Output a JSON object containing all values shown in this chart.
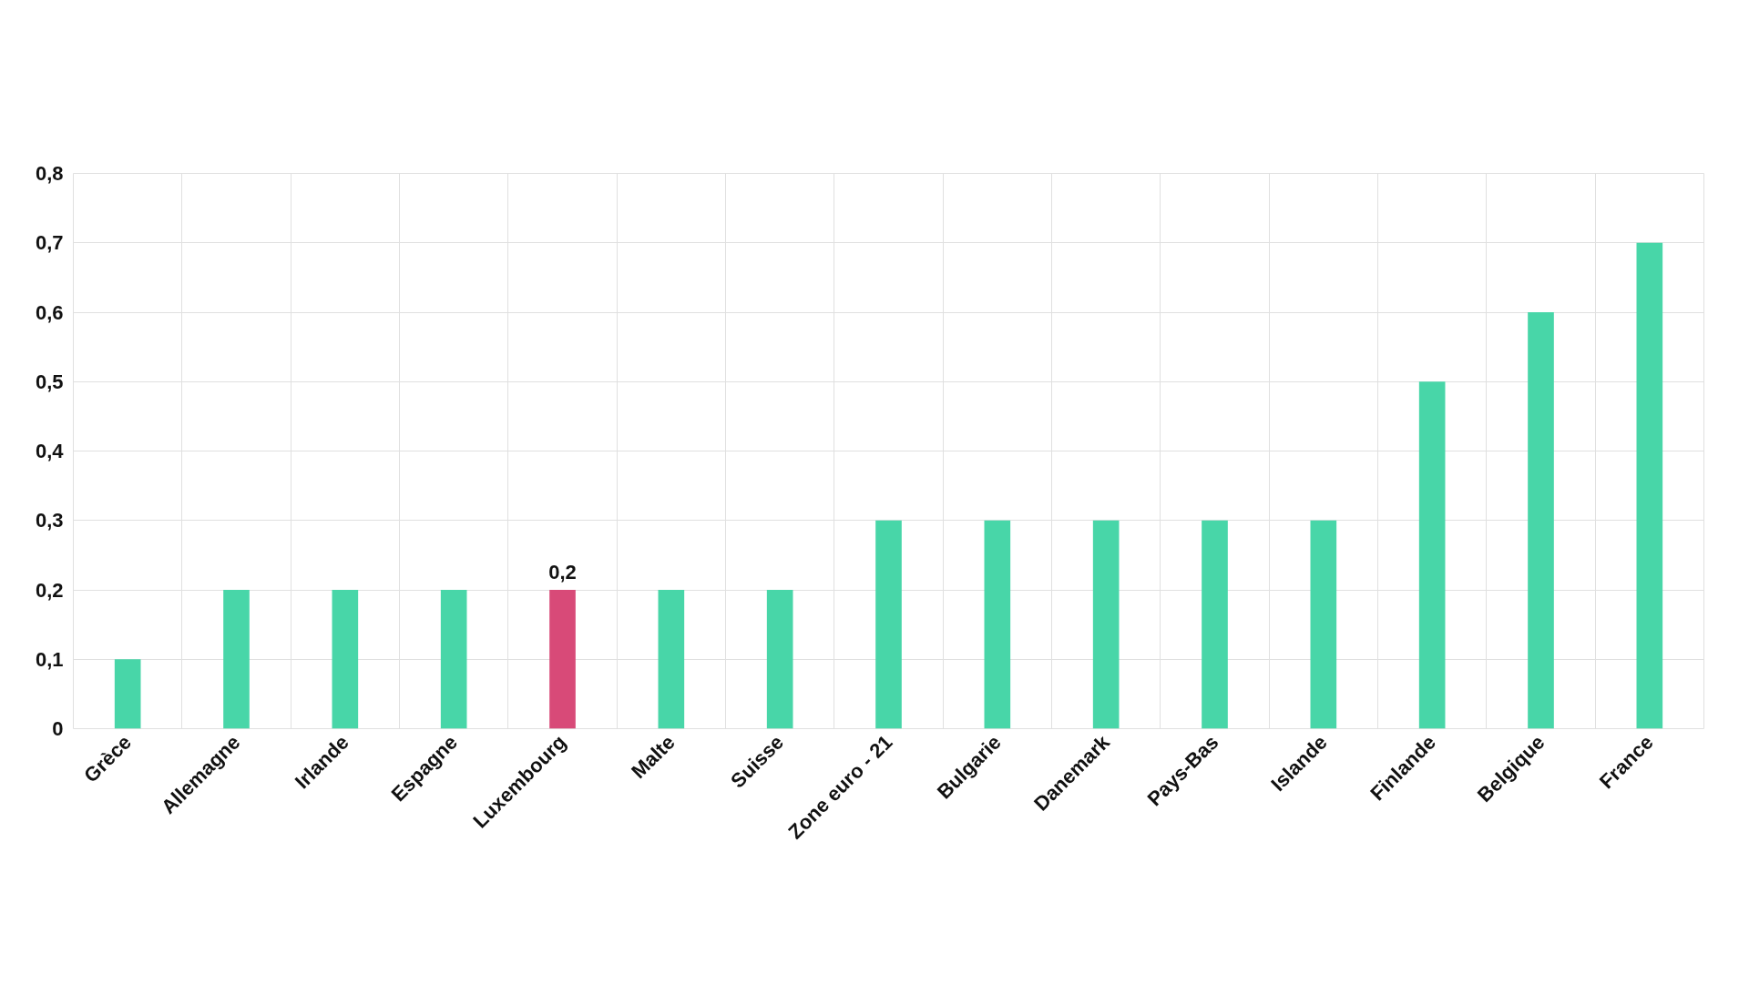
{
  "chart_data": {
    "type": "bar",
    "categories": [
      "Grèce",
      "Allemagne",
      "Irlande",
      "Espagne",
      "Luxembourg",
      "Malte",
      "Suisse",
      "Zone euro - 21",
      "Bulgarie",
      "Danemark",
      "Pays-Bas",
      "Islande",
      "Finlande",
      "Belgique",
      "France"
    ],
    "values": [
      0.1,
      0.2,
      0.2,
      0.2,
      0.2,
      0.2,
      0.2,
      0.3,
      0.3,
      0.3,
      0.3,
      0.3,
      0.5,
      0.6,
      0.7
    ],
    "colors": [
      "#48d6a8",
      "#48d6a8",
      "#48d6a8",
      "#48d6a8",
      "#d84a78",
      "#48d6a8",
      "#48d6a8",
      "#48d6a8",
      "#48d6a8",
      "#48d6a8",
      "#48d6a8",
      "#48d6a8",
      "#48d6a8",
      "#48d6a8",
      "#48d6a8"
    ],
    "value_labels": [
      null,
      null,
      null,
      null,
      "0,2",
      null,
      null,
      null,
      null,
      null,
      null,
      null,
      null,
      null,
      null
    ],
    "ylim": [
      0,
      0.8
    ],
    "yticks": [
      0,
      {
        "value": 0.1,
        "label": "0,1"
      },
      {
        "value": 0.2,
        "label": "0,2"
      },
      {
        "value": 0.3,
        "label": "0,3"
      },
      {
        "value": 0.4,
        "label": "0,4"
      },
      {
        "value": 0.5,
        "label": "0,5"
      },
      {
        "value": 0.6,
        "label": "0,6"
      },
      {
        "value": 0.7,
        "label": "0,7"
      },
      {
        "value": 0.8,
        "label": "0,8"
      }
    ],
    "grid": true
  }
}
